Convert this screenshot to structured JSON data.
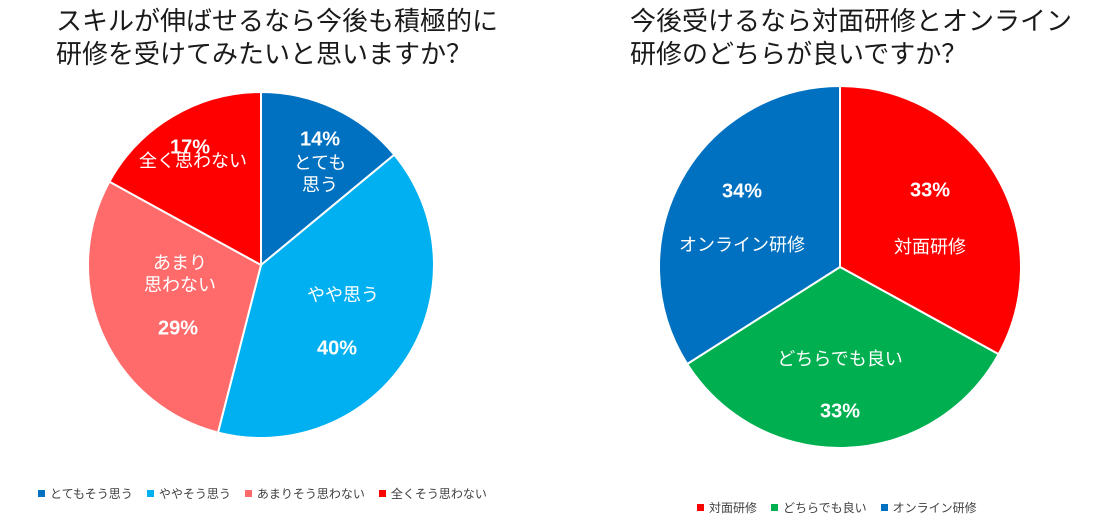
{
  "chart_data": [
    {
      "type": "pie",
      "title": "スキルが伸ばせるなら今後も積極的に\n研修を受けてみたいと思いますか？",
      "slices": [
        {
          "name": "とてもそう思う",
          "label": "とても\n思う",
          "value": 14,
          "pct_label": "14%",
          "color": "#0070C0"
        },
        {
          "name": "ややそう思う",
          "label": "やや思う",
          "value": 40,
          "pct_label": "40%",
          "color": "#00B0F0"
        },
        {
          "name": "あまりそう思わない",
          "label": "あまり\n思わない",
          "value": 29,
          "pct_label": "29%",
          "color": "#FF6B6B"
        },
        {
          "name": "全くそう思わない",
          "label": "全く思わない",
          "value": 17,
          "pct_label": "17%",
          "color": "#FF0000"
        }
      ],
      "legend": [
        "とてもそう思う",
        "ややそう思う",
        "あまりそう思わない",
        "全くそう思わない"
      ],
      "legend_position": "bottom"
    },
    {
      "type": "pie",
      "title": "今後受けるなら対面研修とオンライン\n研修のどちらが良いですか？",
      "slices": [
        {
          "name": "対面研修",
          "label": "対面研修",
          "value": 33,
          "pct_label": "33%",
          "color": "#FF0000"
        },
        {
          "name": "どちらでも良い",
          "label": "どちらでも良い",
          "value": 33,
          "pct_label": "33%",
          "color": "#00B050"
        },
        {
          "name": "オンライン研修",
          "label": "オンライン研修",
          "value": 34,
          "pct_label": "34%",
          "color": "#0070C0"
        }
      ],
      "legend": [
        "対面研修",
        "どちらでも良い",
        "オンライン研修"
      ],
      "legend_position": "bottom"
    }
  ]
}
